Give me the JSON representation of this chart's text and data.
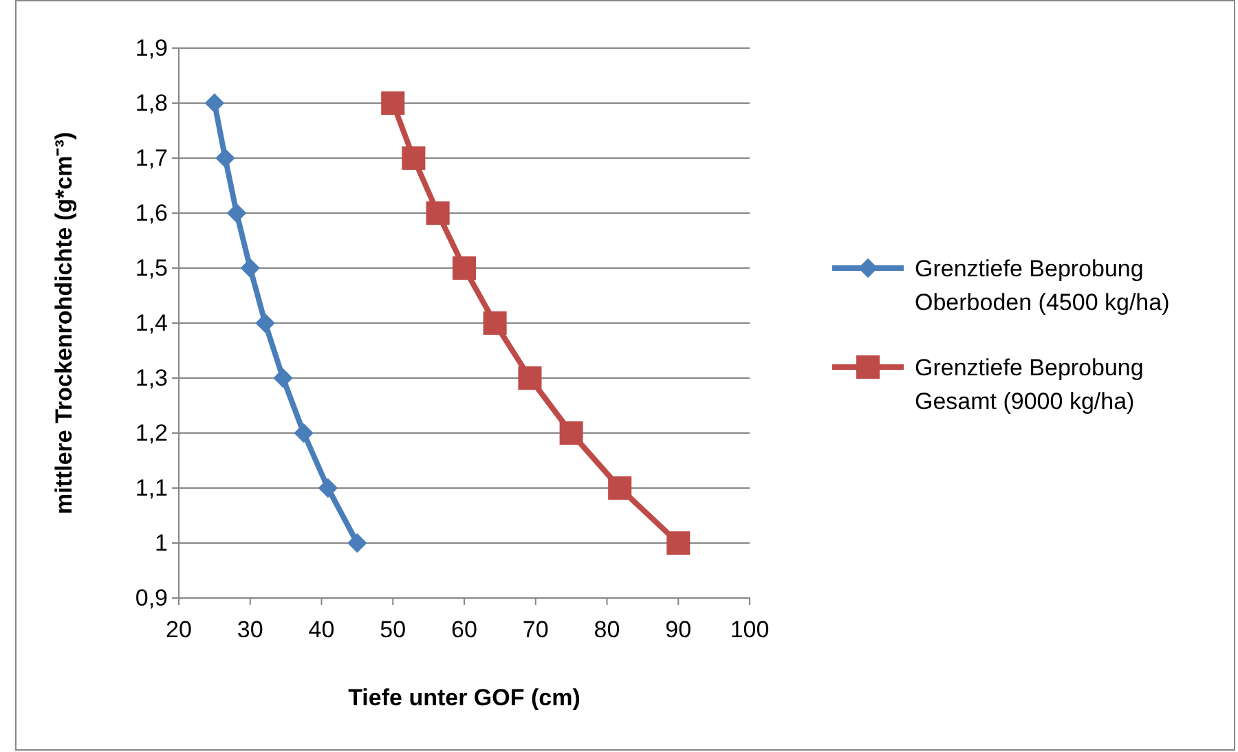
{
  "chart_data": {
    "type": "line",
    "xlabel": "Tiefe unter GOF (cm)",
    "ylabel": "mittlere Trockenrohdichte (g*cm⁻³)",
    "xlim": [
      20,
      100
    ],
    "xticks": [
      20,
      30,
      40,
      50,
      60,
      70,
      80,
      90,
      100
    ],
    "ylim": [
      0.9,
      1.9
    ],
    "yticks": [
      {
        "value": 0.9,
        "label": "0,9"
      },
      {
        "value": 1,
        "label": "1"
      },
      {
        "value": 1.1,
        "label": "1,1"
      },
      {
        "value": 1.2,
        "label": "1,2"
      },
      {
        "value": 1.3,
        "label": "1,3"
      },
      {
        "value": 1.4,
        "label": "1,4"
      },
      {
        "value": 1.5,
        "label": "1,5"
      },
      {
        "value": 1.6,
        "label": "1,6"
      },
      {
        "value": 1.7,
        "label": "1,7"
      },
      {
        "value": 1.8,
        "label": "1,8"
      },
      {
        "value": 1.9,
        "label": "1,9"
      }
    ],
    "grid": "y",
    "legend": "right",
    "series": [
      {
        "name": "Grenztiefe Beprobung Oberboden (4500 kg/ha)",
        "color": "#4a7ebb",
        "marker": "diamond",
        "x": [
          25,
          26.5,
          28.1,
          30,
          32.1,
          34.6,
          37.5,
          40.9,
          45
        ],
        "values": [
          1.8,
          1.7,
          1.6,
          1.5,
          1.4,
          1.3,
          1.2,
          1.1,
          1
        ]
      },
      {
        "name": "Grenztiefe Beprobung Gesamt (9000 kg/ha)",
        "color": "#be4b48",
        "marker": "square",
        "x": [
          50,
          52.9,
          56.3,
          60,
          64.3,
          69.2,
          75,
          81.8,
          90
        ],
        "values": [
          1.8,
          1.7,
          1.6,
          1.5,
          1.4,
          1.3,
          1.2,
          1.1,
          1
        ]
      }
    ]
  }
}
